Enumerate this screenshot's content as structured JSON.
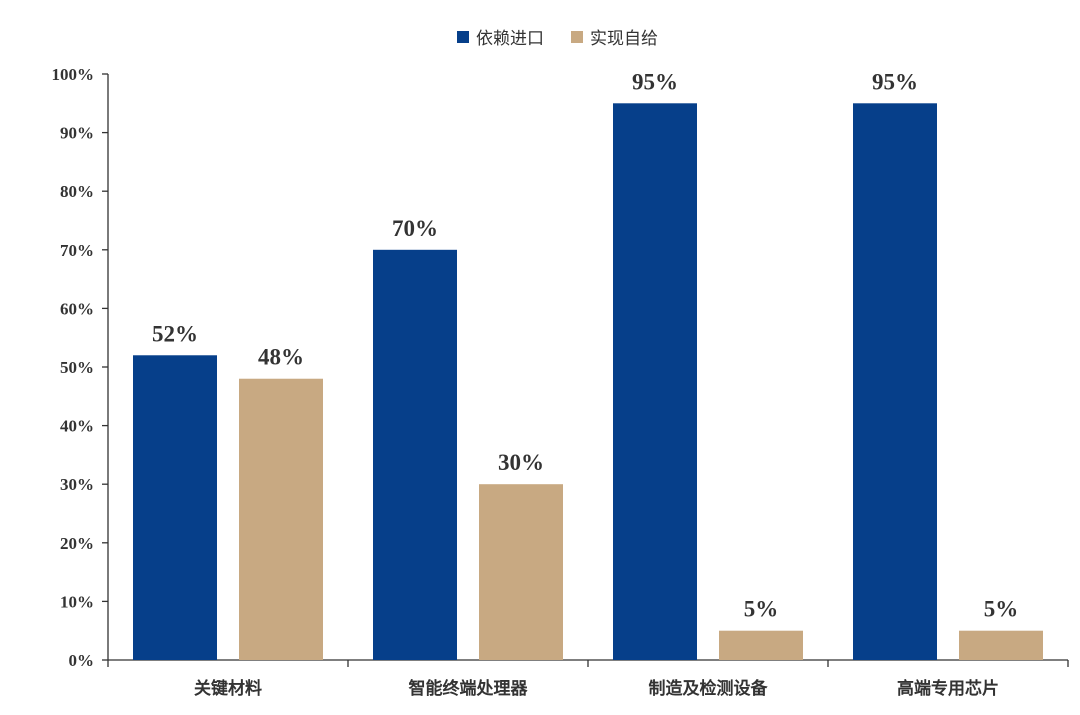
{
  "chart_data": {
    "type": "bar",
    "title": "",
    "xlabel": "",
    "ylabel": "",
    "ylim": [
      0,
      100
    ],
    "y_tick_labels": [
      "0%",
      "10%",
      "20%",
      "30%",
      "40%",
      "50%",
      "60%",
      "70%",
      "80%",
      "90%",
      "100%"
    ],
    "categories": [
      "关键材料",
      "智能终端处理器",
      "制造及检测设备",
      "高端专用芯片"
    ],
    "series": [
      {
        "name": "依赖进口",
        "color": "#063F8A",
        "values": [
          52,
          70,
          95,
          95
        ],
        "data_labels": [
          "52%",
          "70%",
          "95%",
          "95%"
        ]
      },
      {
        "name": "实现自给",
        "color": "#C8A982",
        "values": [
          48,
          30,
          5,
          5
        ],
        "data_labels": [
          "48%",
          "30%",
          "5%",
          "5%"
        ]
      }
    ],
    "grid": false,
    "legend_position": "top-center"
  }
}
